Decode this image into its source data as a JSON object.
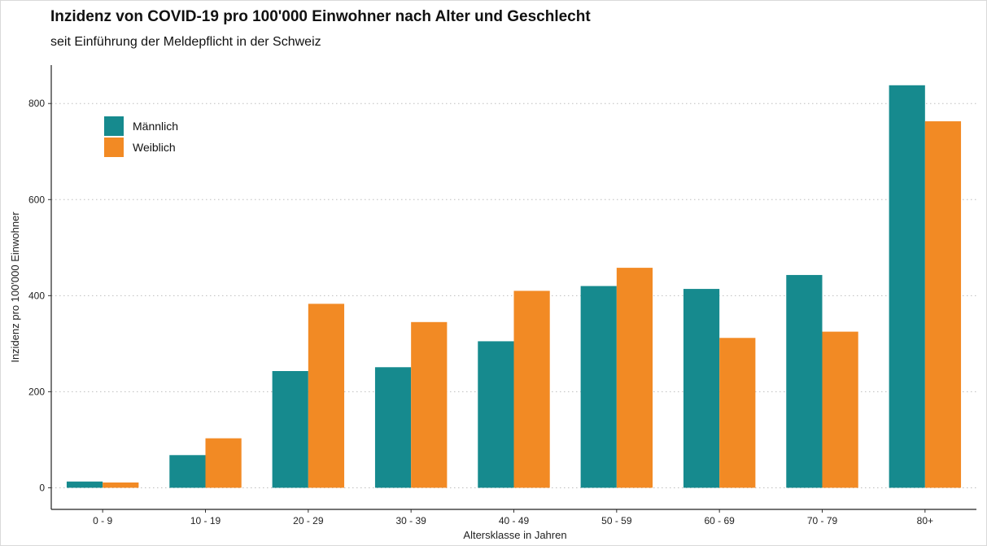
{
  "chart_data": {
    "type": "bar",
    "title": "Inzidenz von COVID-19 pro 100'000 Einwohner nach Alter und Geschlecht",
    "subtitle": "seit Einführung der Meldepflicht in der Schweiz",
    "xlabel": "Altersklasse in Jahren",
    "ylabel": "Inzidenz pro 100'000 Einwohner",
    "categories": [
      "0 - 9",
      "10 - 19",
      "20 - 29",
      "30 - 39",
      "40 - 49",
      "50 - 59",
      "60 - 69",
      "70 - 79",
      "80+"
    ],
    "series": [
      {
        "name": "Männlich",
        "color": "#168a8e",
        "values": [
          13,
          68,
          243,
          251,
          305,
          420,
          414,
          443,
          838
        ]
      },
      {
        "name": "Weiblich",
        "color": "#f28a24",
        "values": [
          11,
          103,
          383,
          345,
          410,
          458,
          312,
          325,
          763
        ]
      }
    ],
    "ylim": [
      -45,
      880
    ],
    "yticks": [
      0,
      200,
      400,
      600,
      800
    ],
    "grid": "horizontal dotted",
    "legend_position": "top-left"
  }
}
